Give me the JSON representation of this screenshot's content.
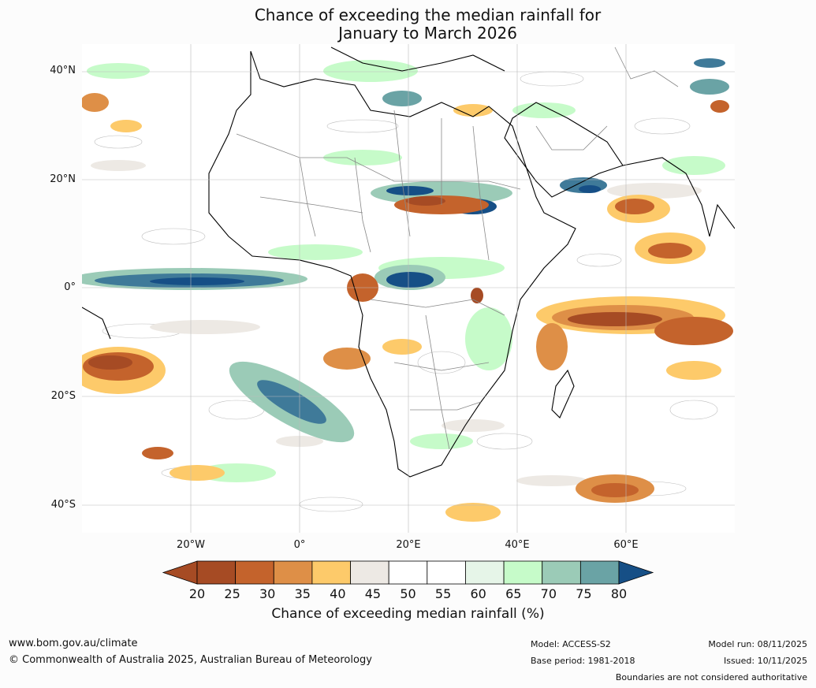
{
  "title": {
    "line1": "Chance of exceeding the median rainfall for",
    "line2": "January to March 2026"
  },
  "map": {
    "lat_labels": [
      "40°N",
      "20°N",
      "0°",
      "20°S",
      "40°S"
    ],
    "lon_labels": [
      "20°W",
      "0°",
      "20°E",
      "40°E",
      "60°E"
    ],
    "region": "Africa and surrounding oceans",
    "extent": {
      "lon_min": -40,
      "lon_max": 80,
      "lat_min": -45,
      "lat_max": 45
    },
    "ocean_color": "#ffffff",
    "coastline_color": "#000000",
    "border_color": "#888888"
  },
  "colorbar": {
    "ticks": [
      "20",
      "25",
      "30",
      "35",
      "40",
      "45",
      "50",
      "55",
      "60",
      "65",
      "70",
      "75",
      "80"
    ],
    "colors": [
      "#a64b24",
      "#c4632c",
      "#de8f47",
      "#fdca6a",
      "#ede9e4",
      "#ffffff",
      "#ffffff",
      "#e6f5e8",
      "#c6fbc9",
      "#9bcbb7",
      "#6aa3a5",
      "#3f7a99",
      "#164f86"
    ],
    "label": "Chance of exceeding median rainfall (%)"
  },
  "footer": {
    "url": "www.bom.gov.au/climate",
    "copyright": "© Commonwealth of Australia 2025, Australian Bureau of Meteorology",
    "model": "Model: ACCESS-S2",
    "base_period": "Base period: 1981-2018",
    "model_run": "Model run: 08/11/2025",
    "issued": "Issued: 10/11/2025",
    "disclaimer": "Boundaries are not considered authoritative"
  }
}
